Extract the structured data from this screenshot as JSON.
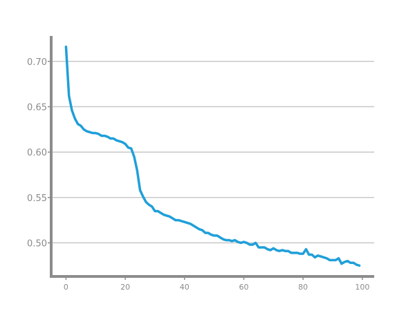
{
  "chart_data": {
    "type": "line",
    "title": "",
    "xlabel": "",
    "ylabel": "",
    "xlim": [
      -5,
      104
    ],
    "ylim": [
      0.463,
      0.728
    ],
    "grid": {
      "y": true,
      "x": false
    },
    "x_ticks": [
      0,
      20,
      40,
      60,
      80,
      100
    ],
    "y_ticks": [
      0.5,
      0.55,
      0.6,
      0.65,
      0.7
    ],
    "x_tick_labels": [
      "0",
      "20",
      "40",
      "60",
      "80",
      "100"
    ],
    "y_tick_labels": [
      "0.50",
      "0.55",
      "0.60",
      "0.65",
      "0.70"
    ],
    "series": [
      {
        "color": "#1f9fd9",
        "x": [
          0,
          1,
          2,
          3,
          4,
          5,
          6,
          7,
          8,
          9,
          10,
          11,
          12,
          13,
          14,
          15,
          16,
          17,
          18,
          19,
          20,
          21,
          22,
          23,
          24,
          25,
          26,
          27,
          28,
          29,
          30,
          31,
          32,
          33,
          34,
          35,
          36,
          37,
          38,
          39,
          40,
          41,
          42,
          43,
          44,
          45,
          46,
          47,
          48,
          49,
          50,
          51,
          52,
          53,
          54,
          55,
          56,
          57,
          58,
          59,
          60,
          61,
          62,
          63,
          64,
          65,
          66,
          67,
          68,
          69,
          70,
          71,
          72,
          73,
          74,
          75,
          76,
          77,
          78,
          79,
          80,
          81,
          82,
          83,
          84,
          85,
          86,
          87,
          88,
          89,
          90,
          91,
          92,
          93,
          94,
          95,
          96,
          97,
          98,
          99
        ],
        "y": [
          0.716,
          0.662,
          0.646,
          0.637,
          0.631,
          0.629,
          0.625,
          0.623,
          0.622,
          0.621,
          0.621,
          0.62,
          0.618,
          0.618,
          0.617,
          0.615,
          0.615,
          0.613,
          0.612,
          0.611,
          0.609,
          0.605,
          0.604,
          0.595,
          0.58,
          0.558,
          0.551,
          0.545,
          0.542,
          0.54,
          0.535,
          0.535,
          0.533,
          0.531,
          0.53,
          0.529,
          0.527,
          0.525,
          0.525,
          0.524,
          0.523,
          0.522,
          0.521,
          0.519,
          0.517,
          0.515,
          0.514,
          0.511,
          0.511,
          0.509,
          0.508,
          0.508,
          0.506,
          0.504,
          0.503,
          0.503,
          0.502,
          0.503,
          0.501,
          0.5,
          0.501,
          0.5,
          0.498,
          0.498,
          0.5,
          0.495,
          0.495,
          0.495,
          0.493,
          0.492,
          0.494,
          0.492,
          0.491,
          0.492,
          0.491,
          0.491,
          0.489,
          0.489,
          0.489,
          0.488,
          0.488,
          0.493,
          0.487,
          0.487,
          0.484,
          0.486,
          0.485,
          0.484,
          0.483,
          0.481,
          0.481,
          0.481,
          0.483,
          0.477,
          0.479,
          0.48,
          0.478,
          0.478,
          0.476,
          0.475
        ]
      }
    ]
  }
}
